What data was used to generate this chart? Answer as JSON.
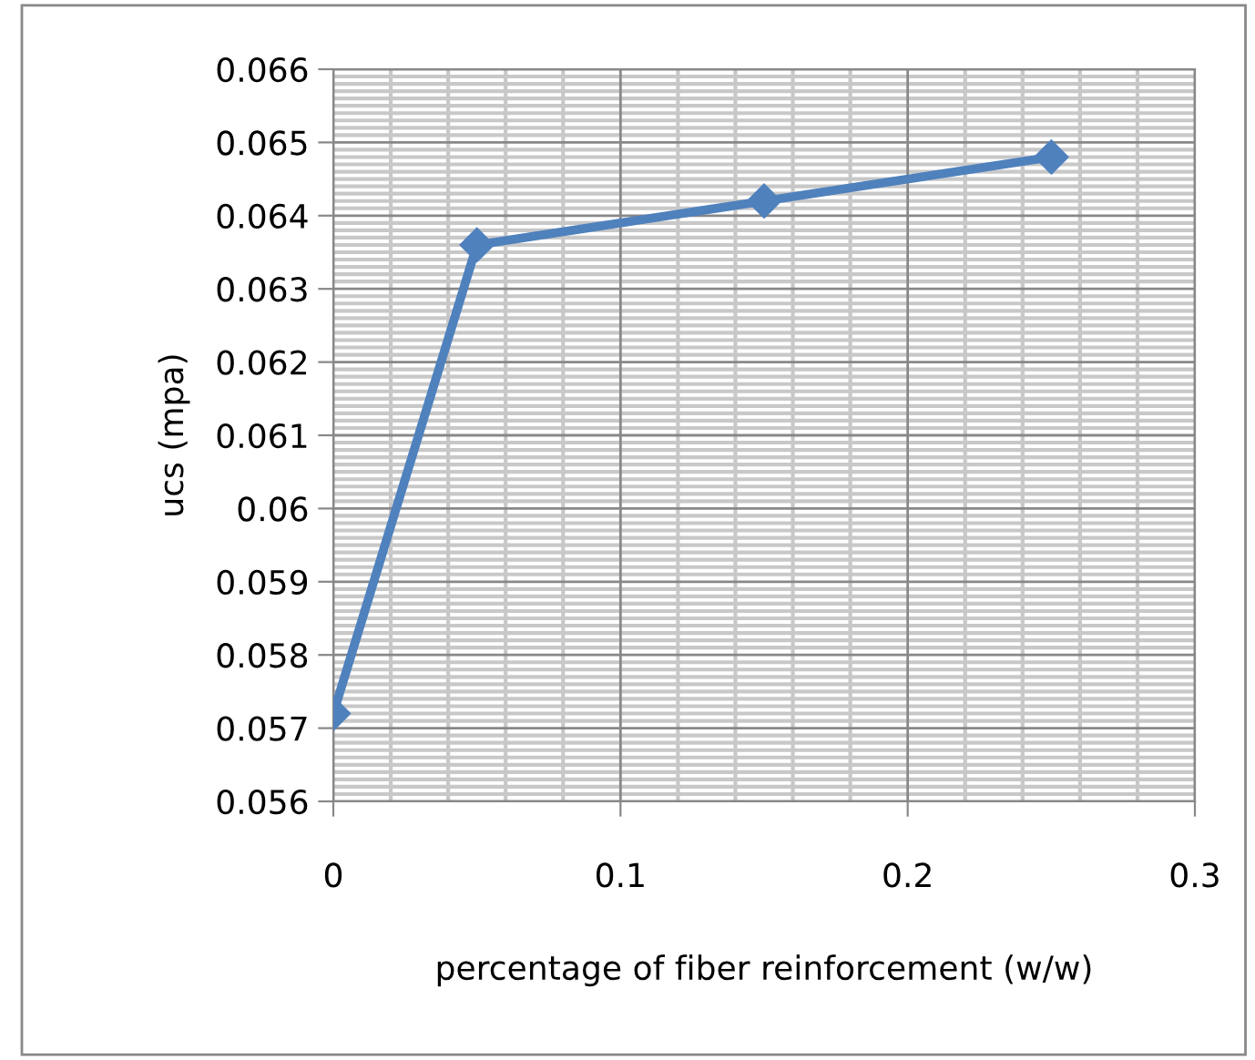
{
  "chart_data": {
    "type": "line",
    "xlabel": "percentage of fiber reinforcement (w/w)",
    "ylabel": "ucs (mpa)",
    "x": [
      0,
      0.05,
      0.15,
      0.25
    ],
    "series": [
      {
        "color": "#4f81bd",
        "values": [
          0.0572,
          0.0636,
          0.0642,
          0.0648
        ]
      }
    ],
    "xlim": [
      0,
      0.3
    ],
    "xticks": [
      0,
      0.1,
      0.2,
      0.3
    ],
    "ylim": [
      0.056,
      0.066
    ],
    "yticks": [
      0.056,
      0.057,
      0.058,
      0.059,
      0.06,
      0.061,
      0.062,
      0.063,
      0.064,
      0.065,
      0.066
    ],
    "grid": true,
    "marker": "diamond",
    "line_style": "solid"
  }
}
